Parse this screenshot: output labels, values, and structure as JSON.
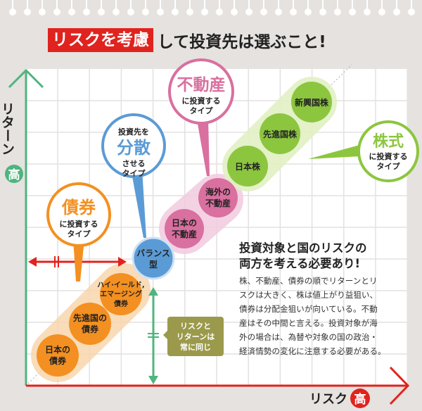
{
  "title": {
    "highlight": "リスクを考慮",
    "rest": "して投資先は選ぶこと!"
  },
  "axes": {
    "y_label": "リターン",
    "y_high": "高",
    "x_label": "リスク",
    "x_high": "高"
  },
  "callouts": {
    "bonds": {
      "main": "債券",
      "line1": "に投資する",
      "line2": "タイプ"
    },
    "diversify": {
      "top": "投資先を",
      "main": "分散",
      "line1": "させる",
      "line2": "タイプ"
    },
    "realestate": {
      "main": "不動産",
      "line1": "に投資する",
      "line2": "タイプ"
    },
    "stocks": {
      "main": "株式",
      "line1": "に投資する",
      "line2": "タイプ"
    }
  },
  "items": {
    "jp_bond": [
      "日本の",
      "債券"
    ],
    "dev_bond": [
      "先進国の",
      "債券"
    ],
    "hy_bond": [
      "ハイ·イールド,",
      "エマージング",
      "債券"
    ],
    "balance": [
      "バランス",
      "型"
    ],
    "jp_re": [
      "日本の",
      "不動産"
    ],
    "intl_re": [
      "海外の",
      "不動産"
    ],
    "jp_stock": "日本株",
    "dev_stock": "先進国株",
    "em_stock": "新興国株"
  },
  "equal_note": [
    "リスクと",
    "リターンは",
    "常に同じ"
  ],
  "note": {
    "heading": [
      "投資対象と国のリスクの",
      "両方を考える必要あり!"
    ],
    "body": [
      "株、不動産、債券の順でリターンとリ",
      "スクは大きく、株は値上がり益狙い、",
      "債券は分配金狙いが向いている。不動",
      "産はその中間と言える。投資対象が海",
      "外の場合は、為替や対象の国の政治・",
      "経済情勢の変化に注意する必要がある。"
    ]
  },
  "colors": {
    "bond": "#f39021",
    "balance": "#5b9bd5",
    "realestate": "#d9709f",
    "stock": "#8cc63f",
    "risk_axis": "#e0231e",
    "return_axis": "#4fb47e",
    "note_box": "#9b9a4c"
  }
}
